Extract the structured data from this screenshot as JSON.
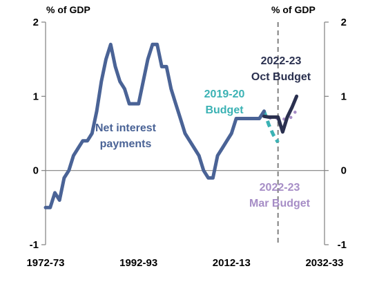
{
  "chart_data": {
    "type": "line",
    "ylabel_left": "% of GDP",
    "ylabel_right": "% of GDP",
    "ylim": [
      -1,
      2
    ],
    "y_ticks": [
      -1,
      0,
      1,
      2
    ],
    "x_tick_labels": [
      "1972-73",
      "1992-93",
      "2012-13",
      "2032-33"
    ],
    "x_range": [
      1972,
      2032
    ],
    "vertical_marker_year": 2022,
    "grid": false,
    "legend": "none",
    "series": [
      {
        "name": "Net interest payments",
        "color": "#4a6396",
        "style": "solid",
        "x": [
          1972,
          1973,
          1974,
          1975,
          1976,
          1977,
          1978,
          1979,
          1980,
          1981,
          1982,
          1983,
          1984,
          1985,
          1986,
          1987,
          1988,
          1989,
          1990,
          1991,
          1992,
          1993,
          1994,
          1995,
          1996,
          1997,
          1998,
          1999,
          2000,
          2001,
          2002,
          2003,
          2004,
          2005,
          2006,
          2007,
          2008,
          2009,
          2010,
          2011,
          2012,
          2013,
          2014,
          2015,
          2016,
          2017,
          2018,
          2019
        ],
        "values": [
          -0.5,
          -0.5,
          -0.3,
          -0.4,
          -0.1,
          0.0,
          0.2,
          0.3,
          0.4,
          0.4,
          0.5,
          0.8,
          1.2,
          1.5,
          1.7,
          1.4,
          1.2,
          1.1,
          0.9,
          0.9,
          0.9,
          1.2,
          1.5,
          1.7,
          1.7,
          1.4,
          1.4,
          1.1,
          0.9,
          0.7,
          0.5,
          0.4,
          0.3,
          0.2,
          0.0,
          -0.1,
          -0.1,
          0.2,
          0.3,
          0.4,
          0.5,
          0.7,
          0.7,
          0.7,
          0.7,
          0.7,
          0.7,
          0.8
        ]
      },
      {
        "name": "2019-20 Budget",
        "color": "#3bb2b4",
        "style": "dashed",
        "x": [
          2019,
          2020,
          2021,
          2022
        ],
        "values": [
          0.8,
          0.62,
          0.48,
          0.38
        ]
      },
      {
        "name": "2022-23 Mar Budget",
        "color": "#a68dc6",
        "style": "dotted",
        "x": [
          2019,
          2020,
          2021,
          2022,
          2023,
          2024,
          2025,
          2026
        ],
        "values": [
          0.75,
          0.71,
          0.7,
          0.7,
          0.69,
          0.7,
          0.72,
          0.82
        ]
      },
      {
        "name": "2022-23 Oct Budget",
        "color": "#2a304f",
        "style": "solid",
        "x": [
          2019,
          2020,
          2021,
          2022,
          2023,
          2024,
          2025,
          2026
        ],
        "values": [
          0.73,
          0.72,
          0.72,
          0.72,
          0.52,
          0.72,
          0.85,
          1.0
        ]
      }
    ],
    "annotations": [
      {
        "text": "Net interest",
        "color": "#4a6396"
      },
      {
        "text": "payments",
        "color": "#4a6396"
      },
      {
        "text": "2019-20",
        "color": "#3bb2b4"
      },
      {
        "text": "Budget",
        "color": "#3bb2b4"
      },
      {
        "text": "2022-23",
        "color": "#2a304f"
      },
      {
        "text": "Oct Budget",
        "color": "#2a304f"
      },
      {
        "text": "2022-23",
        "color": "#a68dc6"
      },
      {
        "text": "Mar Budget",
        "color": "#a68dc6"
      }
    ]
  }
}
